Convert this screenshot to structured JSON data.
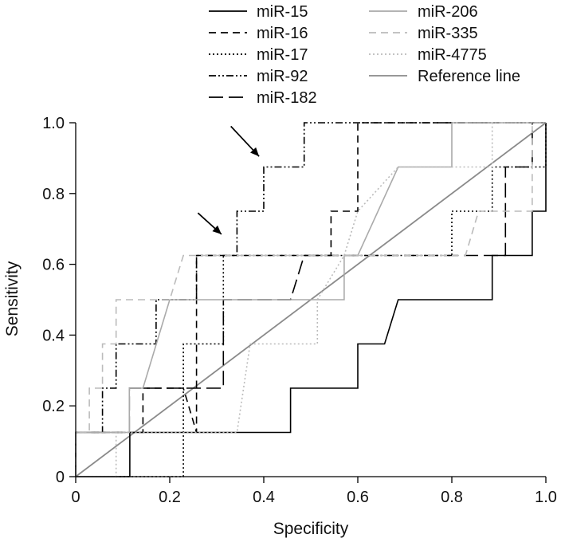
{
  "chart_data": {
    "type": "line",
    "title": "",
    "xlabel": "Specificity",
    "ylabel": "Sensitivity",
    "xlim": [
      0,
      1.0
    ],
    "ylim": [
      0,
      1.0
    ],
    "x_ticks": [
      "0",
      "0.2",
      "0.4",
      "0.6",
      "0.8",
      "1.0"
    ],
    "y_ticks": [
      "0",
      "0.2",
      "0.4",
      "0.6",
      "0.8",
      "1.0"
    ],
    "x_tick_values": [
      0,
      0.2,
      0.4,
      0.6,
      0.8,
      1.0
    ],
    "y_tick_values": [
      0,
      0.2,
      0.4,
      0.6,
      0.8,
      1.0
    ],
    "grid": false,
    "legend_position": "top",
    "series": [
      {
        "name": "miR-15",
        "color": "#000000",
        "dash": "solid",
        "points": [
          [
            0,
            0
          ],
          [
            0.115,
            0
          ],
          [
            0.115,
            0.125
          ],
          [
            0.457,
            0.125
          ],
          [
            0.457,
            0.25
          ],
          [
            0.6,
            0.25
          ],
          [
            0.6,
            0.375
          ],
          [
            0.657,
            0.375
          ],
          [
            0.686,
            0.5
          ],
          [
            0.886,
            0.5
          ],
          [
            0.886,
            0.625
          ],
          [
            0.971,
            0.625
          ],
          [
            0.971,
            0.75
          ],
          [
            1.0,
            0.75
          ],
          [
            1.0,
            1.0
          ]
        ]
      },
      {
        "name": "miR-16",
        "color": "#000000",
        "dash": "dashed",
        "points": [
          [
            0,
            0
          ],
          [
            0,
            0.125
          ],
          [
            0.143,
            0.125
          ],
          [
            0.143,
            0.25
          ],
          [
            0.229,
            0.25
          ],
          [
            0.257,
            0.125
          ],
          [
            0.257,
            0.625
          ],
          [
            0.543,
            0.625
          ],
          [
            0.543,
            0.75
          ],
          [
            0.6,
            0.75
          ],
          [
            0.6,
            1.0
          ],
          [
            1.0,
            1.0
          ]
        ]
      },
      {
        "name": "miR-17",
        "color": "#000000",
        "dash": "dotted",
        "points": [
          [
            0,
            0
          ],
          [
            0.229,
            0
          ],
          [
            0.229,
            0.375
          ],
          [
            0.314,
            0.375
          ],
          [
            0.314,
            0.625
          ],
          [
            0.8,
            0.625
          ],
          [
            0.8,
            0.75
          ],
          [
            0.886,
            0.75
          ],
          [
            0.886,
            0.875
          ],
          [
            1.0,
            0.875
          ],
          [
            1.0,
            1.0
          ]
        ]
      },
      {
        "name": "miR-92",
        "color": "#000000",
        "dash": "dashdotdot",
        "points": [
          [
            0,
            0
          ],
          [
            0,
            0.125
          ],
          [
            0.057,
            0.125
          ],
          [
            0.057,
            0.25
          ],
          [
            0.086,
            0.25
          ],
          [
            0.086,
            0.375
          ],
          [
            0.171,
            0.375
          ],
          [
            0.171,
            0.5
          ],
          [
            0.257,
            0.5
          ],
          [
            0.257,
            0.625
          ],
          [
            0.343,
            0.625
          ],
          [
            0.343,
            0.75
          ],
          [
            0.4,
            0.75
          ],
          [
            0.4,
            0.875
          ],
          [
            0.486,
            0.875
          ],
          [
            0.486,
            1.0
          ],
          [
            0.8,
            1.0
          ],
          [
            1.0,
            1.0
          ]
        ]
      },
      {
        "name": "miR-182",
        "color": "#000000",
        "dash": "longdash",
        "points": [
          [
            0,
            0
          ],
          [
            0,
            0.125
          ],
          [
            0.114,
            0.125
          ],
          [
            0.114,
            0.25
          ],
          [
            0.314,
            0.25
          ],
          [
            0.314,
            0.5
          ],
          [
            0.457,
            0.5
          ],
          [
            0.486,
            0.625
          ],
          [
            0.914,
            0.625
          ],
          [
            0.914,
            0.875
          ],
          [
            0.971,
            0.875
          ],
          [
            0.971,
            1.0
          ],
          [
            1.0,
            1.0
          ]
        ]
      },
      {
        "name": "miR-206",
        "color": "#aaaaaa",
        "dash": "solid",
        "points": [
          [
            0,
            0
          ],
          [
            0,
            0.125
          ],
          [
            0.114,
            0.125
          ],
          [
            0.114,
            0.25
          ],
          [
            0.143,
            0.25
          ],
          [
            0.2,
            0.5
          ],
          [
            0.571,
            0.5
          ],
          [
            0.571,
            0.625
          ],
          [
            0.6,
            0.625
          ],
          [
            0.686,
            0.875
          ],
          [
            0.8,
            0.875
          ],
          [
            0.8,
            1.0
          ],
          [
            1.0,
            1.0
          ]
        ]
      },
      {
        "name": "miR-335",
        "color": "#bbbbbb",
        "dash": "dashed",
        "points": [
          [
            0,
            0
          ],
          [
            0,
            0.125
          ],
          [
            0.029,
            0.125
          ],
          [
            0.029,
            0.25
          ],
          [
            0.057,
            0.25
          ],
          [
            0.057,
            0.375
          ],
          [
            0.086,
            0.375
          ],
          [
            0.086,
            0.5
          ],
          [
            0.2,
            0.5
          ],
          [
            0.229,
            0.625
          ],
          [
            0.829,
            0.625
          ],
          [
            0.857,
            0.75
          ],
          [
            0.971,
            0.75
          ],
          [
            0.971,
            1.0
          ],
          [
            1.0,
            1.0
          ]
        ]
      },
      {
        "name": "miR-4775",
        "color": "#bbbbbb",
        "dash": "dotted",
        "points": [
          [
            0,
            0
          ],
          [
            0.086,
            0
          ],
          [
            0.086,
            0.125
          ],
          [
            0.343,
            0.125
          ],
          [
            0.371,
            0.375
          ],
          [
            0.514,
            0.375
          ],
          [
            0.514,
            0.5
          ],
          [
            0.571,
            0.625
          ],
          [
            0.6,
            0.75
          ],
          [
            0.686,
            0.875
          ],
          [
            0.886,
            0.875
          ],
          [
            0.886,
            1.0
          ],
          [
            1.0,
            1.0
          ]
        ]
      },
      {
        "name": "Reference line",
        "color": "#8a8a8a",
        "dash": "solid",
        "points": [
          [
            0,
            0
          ],
          [
            1.0,
            1.0
          ]
        ]
      }
    ],
    "annotations": [
      {
        "type": "arrow",
        "from": [
          0.33,
          0.99
        ],
        "to": [
          0.39,
          0.905
        ]
      },
      {
        "type": "arrow",
        "from": [
          0.26,
          0.745
        ],
        "to": [
          0.31,
          0.685
        ]
      }
    ]
  }
}
